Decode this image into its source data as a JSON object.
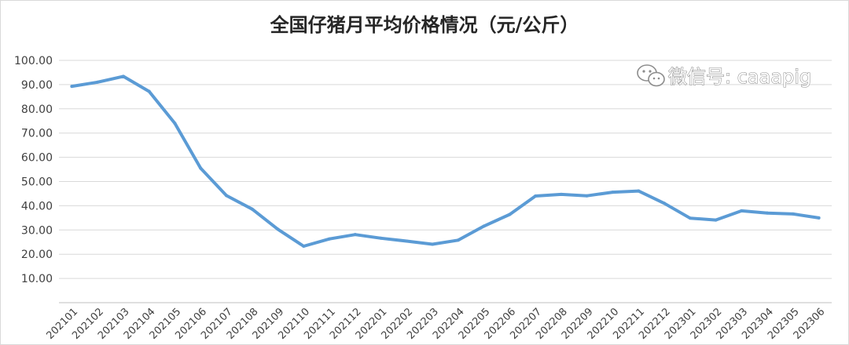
{
  "watermark": {
    "text": "微信号: caaapig",
    "icon": "wechat-icon"
  },
  "chart_data": {
    "type": "line",
    "title": "全国仔猪月平均价格情况（元/公斤）",
    "xlabel": "",
    "ylabel": "",
    "ylim": [
      0,
      100
    ],
    "yticks": [
      "10.00",
      "20.00",
      "30.00",
      "40.00",
      "50.00",
      "60.00",
      "70.00",
      "80.00",
      "90.00",
      "100.00"
    ],
    "grid": true,
    "legend": "none",
    "line_color": "#5b9bd5",
    "categories": [
      "202101",
      "202102",
      "202103",
      "202104",
      "202105",
      "202106",
      "202107",
      "202108",
      "202109",
      "202110",
      "202111",
      "202112",
      "202201",
      "202202",
      "202203",
      "202204",
      "202205",
      "202206",
      "202207",
      "202208",
      "202209",
      "202210",
      "202211",
      "202212",
      "202301",
      "202302",
      "202303",
      "202304",
      "202305",
      "202306"
    ],
    "series": [
      {
        "values": [
          89.3,
          91.0,
          93.4,
          87.2,
          74.0,
          55.5,
          44.2,
          38.6,
          30.3,
          23.3,
          26.3,
          28.1,
          26.6,
          25.4,
          24.1,
          25.8,
          31.6,
          36.4,
          44.0,
          44.7,
          44.1,
          45.6,
          46.1,
          41.0,
          34.9,
          34.1,
          37.9,
          37.0,
          36.6,
          35.0
        ]
      }
    ]
  }
}
